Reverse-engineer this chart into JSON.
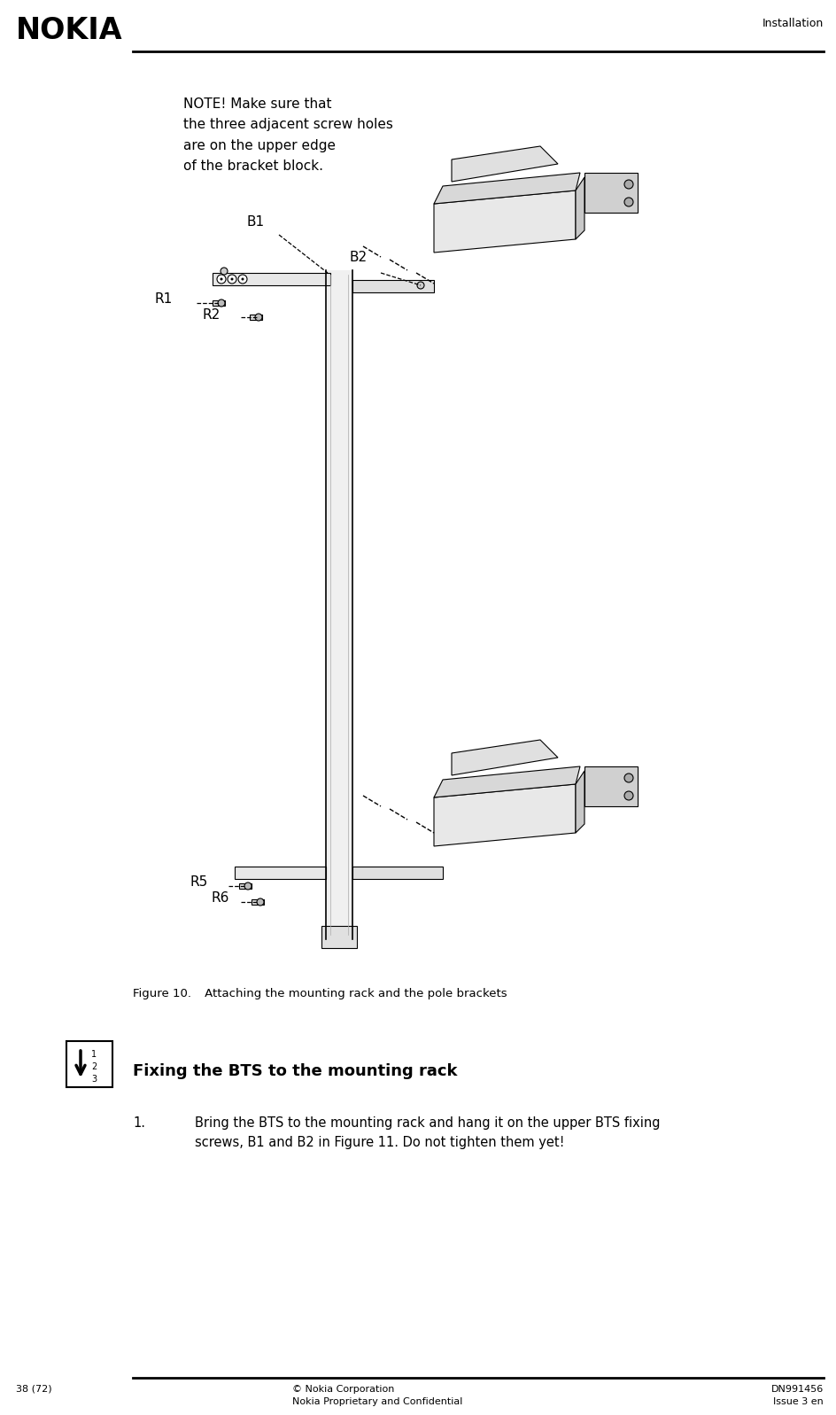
{
  "bg_color": "#ffffff",
  "header_text": "Installation",
  "nokia_logo": "NOKIA",
  "footer_left": "38 (72)",
  "footer_center_line1": "© Nokia Corporation",
  "footer_center_line2": "Nokia Proprietary and Confidential",
  "footer_right_line1": "DN991456",
  "footer_right_line2": "Issue 3 en",
  "note_text": "NOTE! Make sure that\nthe three adjacent screw holes\nare on the upper edge\nof the bracket block.",
  "figure_caption": "Figure 10.   Attaching the mounting rack and the pole brackets",
  "section_title": "Fixing the BTS to the mounting rack",
  "step1_number": "1.",
  "step1_text": "Bring the BTS to the mounting rack and hang it on the upper BTS fixing\nscrews, B1 and B2 in Figure 11. Do not tighten them yet!"
}
